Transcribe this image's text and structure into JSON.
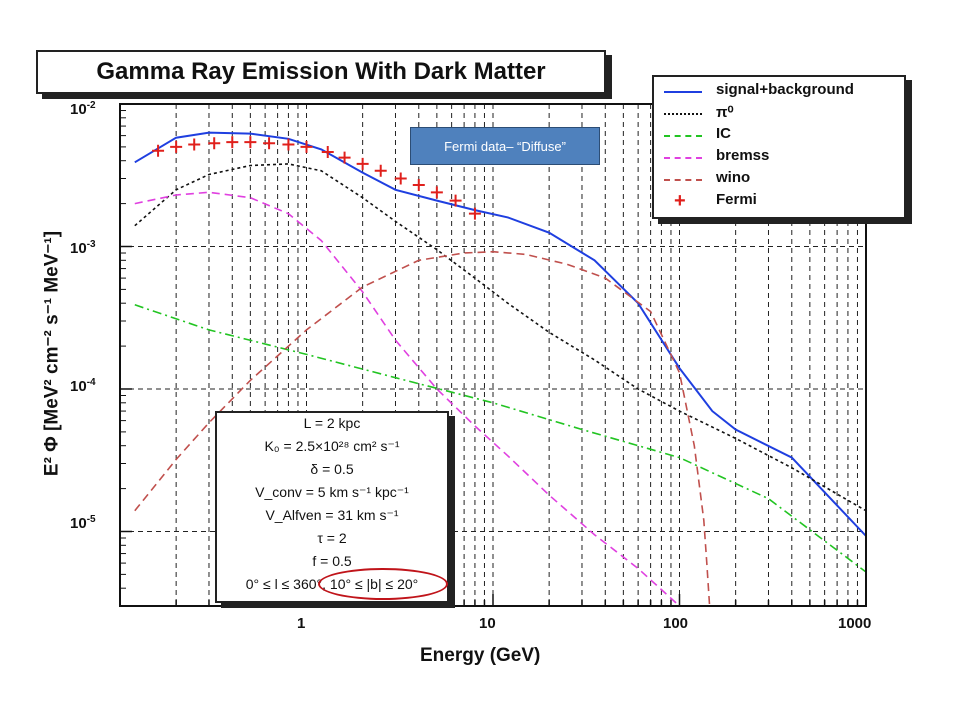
{
  "chart_data": {
    "type": "line",
    "title": "Gamma Ray Emission With Dark Matter",
    "xlabel": "Energy (GeV)",
    "ylabel": "E² Φ [MeV² cm⁻² s⁻¹ MeV⁻¹]",
    "xscale": "log",
    "yscale": "log",
    "xlim": [
      0.1,
      1000
    ],
    "ylim": [
      3e-06,
      0.01
    ],
    "xticks": [
      "1",
      "10",
      "100",
      "1000"
    ],
    "yticks": [
      {
        "value": 0.01,
        "base": "10",
        "exp": "-2"
      },
      {
        "value": 0.001,
        "base": "10",
        "exp": "-3"
      },
      {
        "value": 0.0001,
        "base": "10",
        "exp": "-4"
      },
      {
        "value": 1e-05,
        "base": "10",
        "exp": "-5"
      }
    ],
    "grid": "dashed",
    "legend_position": "top-right",
    "series": [
      {
        "name": "signal+background",
        "color": "#1f3fe0",
        "style": "solid",
        "x": [
          0.12,
          0.2,
          0.3,
          0.5,
          0.8,
          1.2,
          2,
          3,
          5,
          8,
          12,
          20,
          35,
          60,
          100,
          150,
          200,
          400,
          1000
        ],
        "y": [
          0.0039,
          0.0058,
          0.0063,
          0.0062,
          0.0057,
          0.0048,
          0.0033,
          0.0025,
          0.0021,
          0.0018,
          0.0016,
          0.00125,
          0.0008,
          0.0004,
          0.00014,
          7e-05,
          5.2e-05,
          3.3e-05,
          9.3e-06
        ]
      },
      {
        "name": "π⁰",
        "color": "#111111",
        "style": "dotted",
        "x": [
          0.12,
          0.2,
          0.3,
          0.5,
          0.8,
          1.2,
          2,
          3,
          5,
          8,
          12,
          20,
          35,
          60,
          100,
          200,
          400,
          1000
        ],
        "y": [
          0.0014,
          0.0025,
          0.0032,
          0.0037,
          0.0038,
          0.0034,
          0.0022,
          0.0015,
          0.00095,
          0.0006,
          0.0004,
          0.00025,
          0.00016,
          0.0001,
          7e-05,
          4.5e-05,
          2.8e-05,
          1.4e-05
        ]
      },
      {
        "name": "IC",
        "color": "#22c422",
        "style": "dashdot",
        "x": [
          0.12,
          0.3,
          1,
          3,
          10,
          30,
          100,
          300,
          1000
        ],
        "y": [
          0.00039,
          0.00026,
          0.000175,
          0.00012,
          8e-05,
          5.2e-05,
          3.3e-05,
          1.7e-05,
          5.2e-06
        ]
      },
      {
        "name": "bremss",
        "color": "#e040e0",
        "style": "dashed",
        "x": [
          0.12,
          0.2,
          0.3,
          0.5,
          0.8,
          1.2,
          2,
          3,
          5,
          8,
          12,
          20,
          35,
          60,
          100
        ],
        "y": [
          0.002,
          0.0023,
          0.0024,
          0.0022,
          0.0017,
          0.0011,
          0.00048,
          0.00022,
          0.0001,
          5.5e-05,
          3.4e-05,
          1.8e-05,
          9.5e-06,
          5.5e-06,
          3e-06
        ]
      },
      {
        "name": "wino",
        "color": "#c0504d",
        "style": "dashed",
        "x": [
          0.12,
          0.2,
          0.3,
          0.5,
          1,
          2,
          4,
          7,
          10,
          15,
          25,
          40,
          70,
          100,
          120,
          135,
          140,
          145
        ],
        "y": [
          1.4e-05,
          3.2e-05,
          5.8e-05,
          0.000115,
          0.00026,
          0.00052,
          0.0008,
          0.0009,
          0.00092,
          0.00088,
          0.00075,
          0.0006,
          0.00035,
          0.00013,
          4e-05,
          1.2e-05,
          6e-06,
          3e-06
        ]
      },
      {
        "name": "Fermi",
        "color": "#e0201c",
        "style": "marker",
        "x": [
          0.16,
          0.2,
          0.25,
          0.32,
          0.4,
          0.5,
          0.63,
          0.8,
          1.0,
          1.3,
          1.6,
          2.0,
          2.5,
          3.2,
          4.0,
          5.0,
          6.3,
          8.0
        ],
        "y": [
          0.0047,
          0.005,
          0.0052,
          0.0053,
          0.0054,
          0.0054,
          0.0053,
          0.0052,
          0.005,
          0.0046,
          0.0042,
          0.0038,
          0.0034,
          0.003,
          0.0027,
          0.0024,
          0.0021,
          0.0017
        ]
      }
    ]
  },
  "callout_text": "Fermi data– “Diffuse”",
  "params": [
    "L = 2 kpc",
    "K₀ = 2.5×10²⁸ cm² s⁻¹",
    "δ = 0.5",
    "V_conv = 5 km s⁻¹ kpc⁻¹",
    "V_Alfven = 31 km s⁻¹",
    "τ = 2",
    "f = 0.5",
    "0° ≤ l ≤ 360°, 10° ≤ |b| ≤ 20°"
  ],
  "colors": {
    "highlight": "#c0141a",
    "callout_bg": "#4f81bd"
  }
}
